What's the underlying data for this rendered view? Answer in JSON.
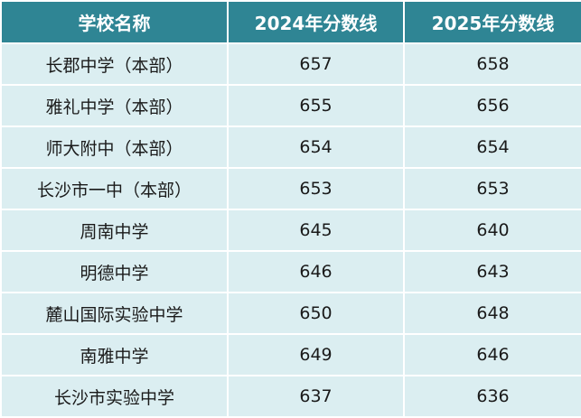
{
  "table": {
    "headers": [
      "学校名称",
      "2024年分数线",
      "2025年分数线"
    ],
    "rows": [
      [
        "长郡中学（本部）",
        "657",
        "658"
      ],
      [
        "雅礼中学（本部）",
        "655",
        "656"
      ],
      [
        "师大附中（本部）",
        "654",
        "654"
      ],
      [
        "长沙市一中（本部）",
        "653",
        "653"
      ],
      [
        "周南中学",
        "645",
        "640"
      ],
      [
        "明德中学",
        "646",
        "643"
      ],
      [
        "麓山国际实验中学",
        "650",
        "648"
      ],
      [
        "南雅中学",
        "649",
        "646"
      ],
      [
        "长沙市实验中学",
        "637",
        "636"
      ]
    ]
  },
  "colors": {
    "header_bg": "#2f8594",
    "header_text": "#ffffff",
    "row_bg": "#dbeef1",
    "cell_text": "#1a1a1a",
    "grid_line": "#ffffff"
  }
}
